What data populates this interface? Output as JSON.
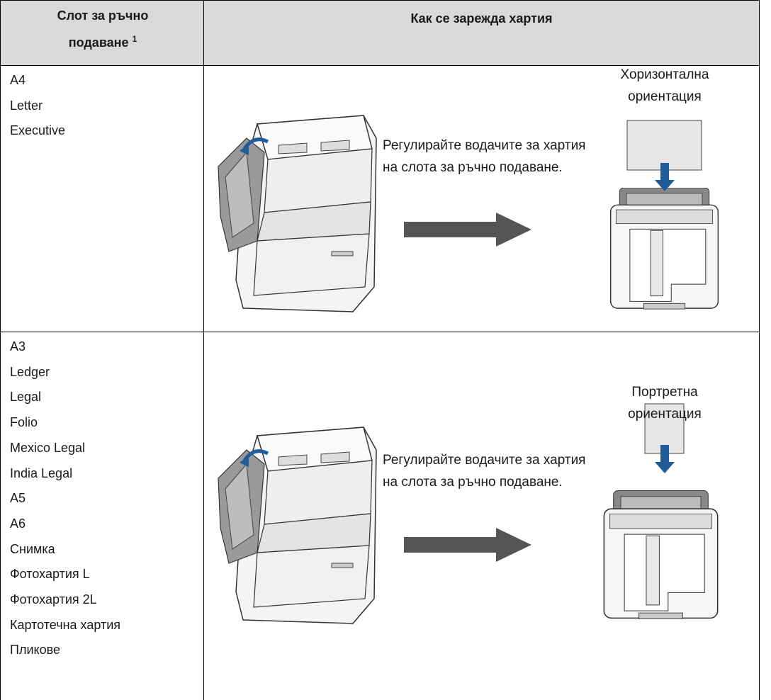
{
  "header": {
    "column_1": "Слот за ръчно подаване",
    "column_1_note": "1",
    "column_2": "Как се зарежда хартия"
  },
  "rows": [
    {
      "sizes": [
        "A4",
        "Letter",
        "Executive"
      ],
      "instruction": "Регулирайте водачите за хартия на слота за ръчно подаване.",
      "orientation": "Хоризонтална ориентация"
    },
    {
      "sizes": [
        "A3",
        "Ledger",
        "Legal",
        "Folio",
        "Mexico Legal",
        "India Legal",
        "A5",
        "A6",
        "Снимка",
        "Фотохартия L",
        "Фотохартия 2L",
        "Картотечна хартия",
        "Пликове"
      ],
      "instruction": "Регулирайте водачите за хартия на слота за ръчно подаване.",
      "orientation": "Портретна ориентация"
    }
  ]
}
